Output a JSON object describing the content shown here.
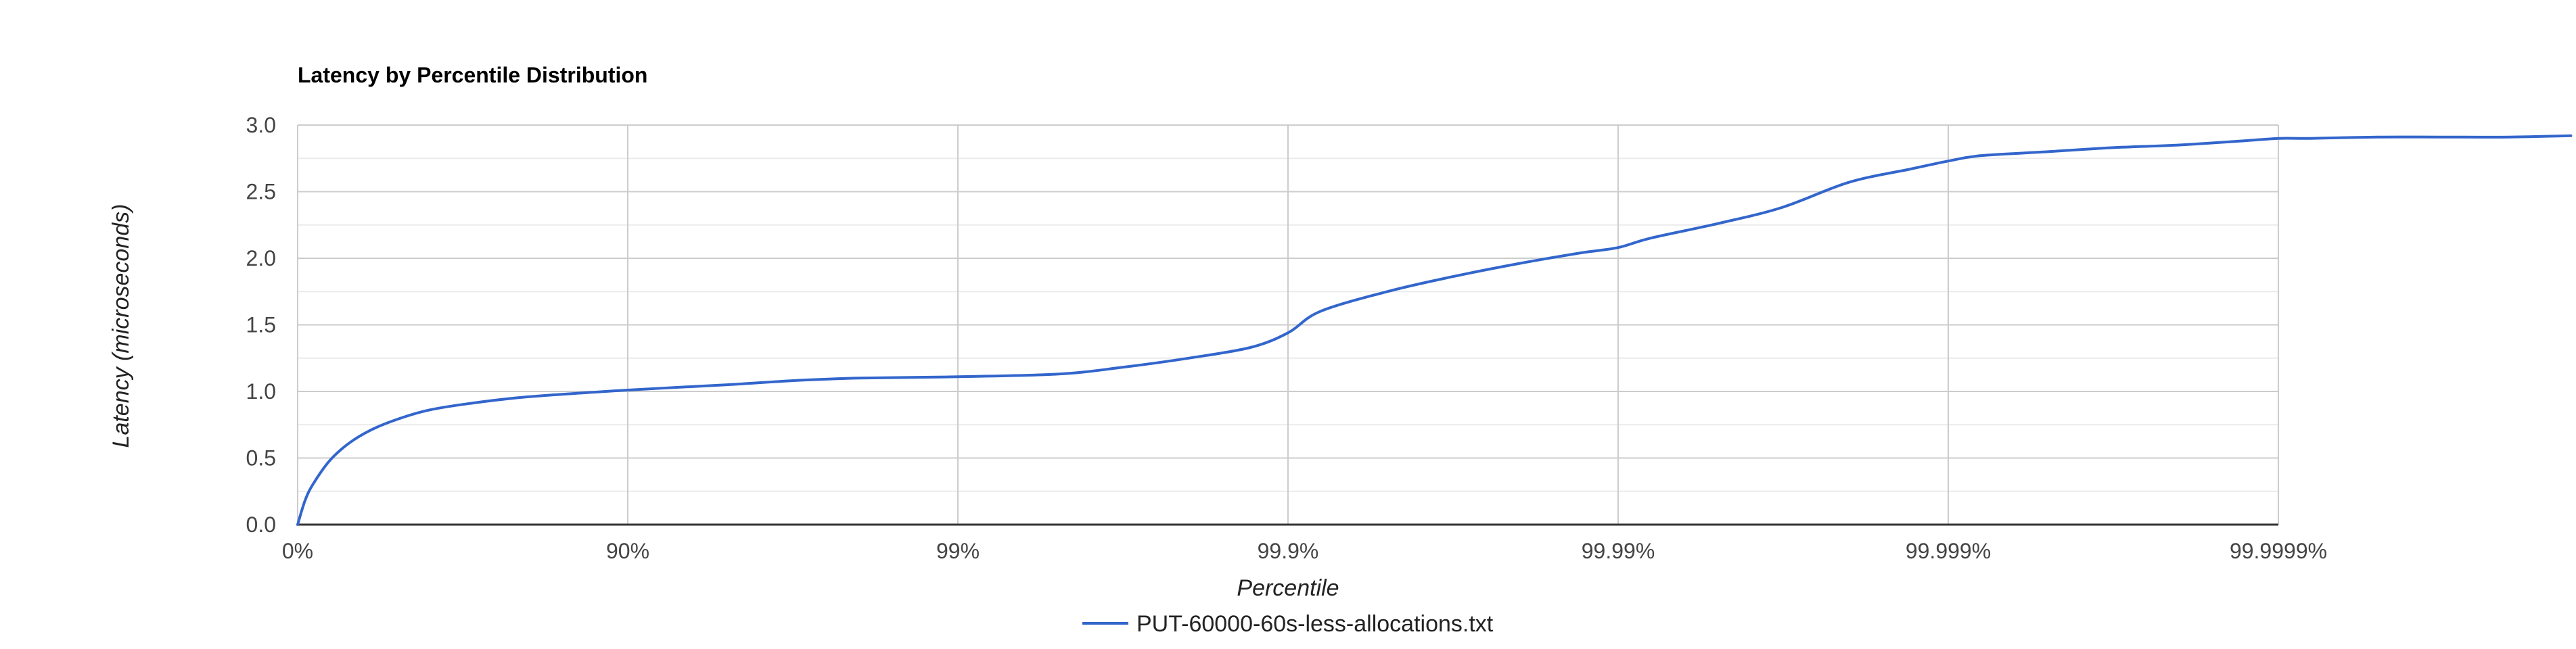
{
  "chart_data": {
    "type": "line",
    "title": "Latency by Percentile Distribution",
    "xlabel": "Percentile",
    "ylabel": "Latency (microseconds)",
    "x_scale": "log-percentile",
    "x_ticks": [
      "0%",
      "90%",
      "99%",
      "99.9%",
      "99.99%",
      "99.999%",
      "99.9999%"
    ],
    "y_ticks": [
      "0.0",
      "0.5",
      "1.0",
      "1.5",
      "2.0",
      "2.5",
      "3.0"
    ],
    "ylim": [
      0,
      3
    ],
    "grid": true,
    "legend_position": "bottom",
    "colors": {
      "series": "#3366cc",
      "grid_major": "#cccccc",
      "grid_minor": "#ebebeb",
      "axis": "#333333"
    },
    "series": [
      {
        "name": "PUT-60000-60s-less-allocations.txt",
        "x": [
          "0%",
          "5%",
          "10%",
          "20%",
          "30%",
          "40%",
          "50%",
          "60%",
          "70%",
          "80%",
          "90%",
          "95%",
          "96.8%",
          "98%",
          "99%",
          "99.5%",
          "99.68%",
          "99.8%",
          "99.87%",
          "99.9%",
          "99.92%",
          "99.95%",
          "99.968%",
          "99.98%",
          "99.987%",
          "99.99%",
          "99.992%",
          "99.995%",
          "99.9968%",
          "99.998%",
          "99.9987%",
          "99.999%",
          "99.9992%",
          "99.9995%",
          "99.99968%",
          "99.9998%",
          "99.99987%",
          "99.9999%",
          "99.99992%",
          "99.99995%",
          "99.999968%",
          "99.99998%",
          "99.999987%"
        ],
        "y": [
          0.0,
          0.18,
          0.3,
          0.48,
          0.61,
          0.71,
          0.79,
          0.86,
          0.91,
          0.96,
          1.01,
          1.05,
          1.08,
          1.1,
          1.11,
          1.13,
          1.18,
          1.25,
          1.33,
          1.44,
          1.6,
          1.75,
          1.86,
          1.96,
          2.04,
          2.08,
          2.15,
          2.26,
          2.38,
          2.57,
          2.67,
          2.73,
          2.77,
          2.8,
          2.83,
          2.85,
          2.88,
          2.9,
          2.9,
          2.91,
          2.91,
          2.91,
          2.92
        ]
      }
    ]
  }
}
